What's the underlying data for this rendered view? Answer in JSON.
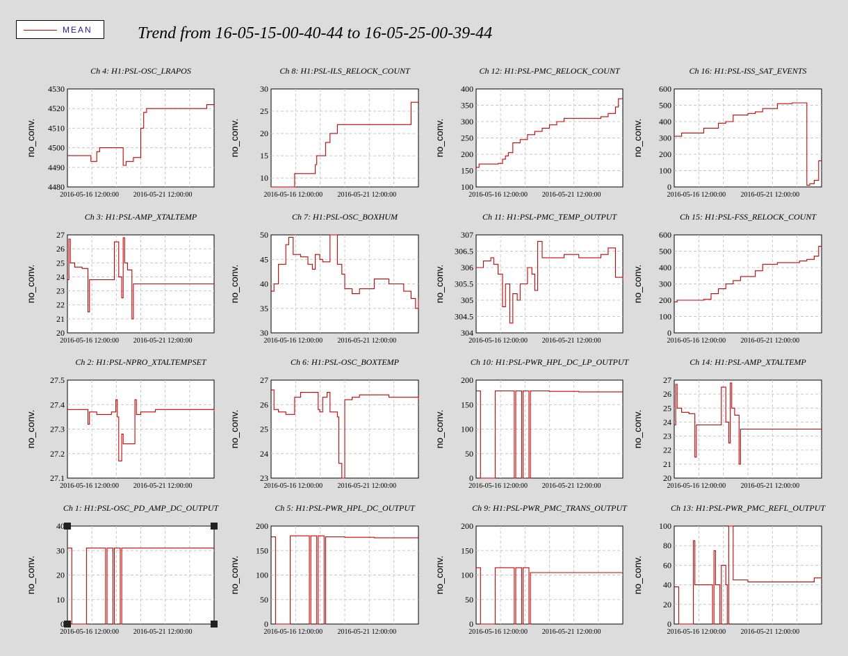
{
  "title": "Trend from 16-05-15-00-40-44 to 16-05-25-00-39-44",
  "legend": {
    "label": "MEAN",
    "color": "#cc0000"
  },
  "chart_data": [
    {
      "type": "line",
      "title": "Ch 4: H1:PSL-OSC_LRAPOS",
      "ylabel": "no_conv.",
      "ylim": [
        4480,
        4530
      ],
      "yticks": [
        "4480",
        "4490",
        "4500",
        "4510",
        "4520",
        "4530"
      ],
      "x": [
        0,
        0.1,
        0.15,
        0.16,
        0.2,
        0.22,
        0.3,
        0.36,
        0.38,
        0.4,
        0.43,
        0.45,
        0.5,
        0.52,
        0.54,
        0.55,
        0.6,
        0.7,
        0.8,
        0.9,
        0.95,
        1
      ],
      "series": [
        {
          "values": [
            4496,
            4496,
            4496,
            4493,
            4498,
            4500,
            4500,
            4500,
            4491,
            4493,
            4493,
            4495,
            4510,
            4518,
            4520,
            4520,
            4520,
            4520,
            4520,
            4520,
            4522,
            4522
          ]
        }
      ]
    },
    {
      "type": "line",
      "title": "Ch 8: H1:PSL-ILS_RELOCK_COUNT",
      "ylabel": "no_conv.",
      "ylim": [
        8,
        30
      ],
      "yticks": [
        "10",
        "15",
        "20",
        "25",
        "30"
      ],
      "x": [
        0,
        0.15,
        0.16,
        0.25,
        0.3,
        0.31,
        0.35,
        0.37,
        0.4,
        0.42,
        0.45,
        0.5,
        0.6,
        0.7,
        0.8,
        0.9,
        0.94,
        0.95,
        1
      ],
      "series": [
        {
          "values": [
            8,
            8,
            11,
            11,
            13,
            15,
            15,
            18,
            20,
            20,
            22,
            22,
            22,
            22,
            22,
            22,
            22,
            27,
            27
          ]
        }
      ]
    },
    {
      "type": "line",
      "title": "Ch 12: H1:PSL-PMC_RELOCK_COUNT",
      "ylabel": "no_conv.",
      "ylim": [
        100,
        400
      ],
      "yticks": [
        "100",
        "150",
        "200",
        "250",
        "300",
        "350",
        "400"
      ],
      "x": [
        0,
        0.02,
        0.1,
        0.15,
        0.18,
        0.2,
        0.22,
        0.25,
        0.3,
        0.35,
        0.4,
        0.45,
        0.5,
        0.55,
        0.6,
        0.7,
        0.8,
        0.85,
        0.9,
        0.95,
        0.97,
        1
      ],
      "series": [
        {
          "values": [
            160,
            170,
            170,
            172,
            185,
            195,
            205,
            235,
            245,
            260,
            270,
            280,
            290,
            300,
            310,
            310,
            310,
            315,
            325,
            345,
            370,
            370
          ]
        }
      ]
    },
    {
      "type": "line",
      "title": "Ch 16: H1:PSL-ISS_SAT_EVENTS",
      "ylabel": "no_conv.",
      "ylim": [
        0,
        600
      ],
      "yticks": [
        "0",
        "100",
        "200",
        "300",
        "400",
        "500",
        "600"
      ],
      "x": [
        0,
        0.05,
        0.1,
        0.15,
        0.2,
        0.3,
        0.35,
        0.4,
        0.5,
        0.55,
        0.6,
        0.7,
        0.8,
        0.85,
        0.89,
        0.9,
        0.92,
        0.95,
        0.98,
        1
      ],
      "series": [
        {
          "values": [
            310,
            330,
            330,
            330,
            360,
            390,
            400,
            440,
            450,
            460,
            480,
            510,
            515,
            515,
            515,
            10,
            20,
            40,
            160,
            160
          ]
        }
      ]
    },
    {
      "type": "line",
      "title": "Ch 3: H1:PSL-AMP_XTALTEMP",
      "ylabel": "no_conv.",
      "ylim": [
        20,
        27
      ],
      "yticks": [
        "20",
        "21",
        "22",
        "23",
        "24",
        "25",
        "26",
        "27"
      ],
      "x": [
        0,
        0.01,
        0.02,
        0.05,
        0.1,
        0.13,
        0.14,
        0.15,
        0.3,
        0.32,
        0.35,
        0.37,
        0.38,
        0.39,
        0.41,
        0.44,
        0.45,
        0.47,
        0.48,
        1
      ],
      "series": [
        {
          "values": [
            23.8,
            26.7,
            25.0,
            24.7,
            24.6,
            24.6,
            21.5,
            23.8,
            23.8,
            26.5,
            24.0,
            22.5,
            26.8,
            25.0,
            24.5,
            21.0,
            23.5,
            23.5,
            23.5,
            23.5
          ]
        }
      ]
    },
    {
      "type": "line",
      "title": "Ch 7: H1:PSL-OSC_BOXHUM",
      "ylabel": "no_conv.",
      "ylim": [
        30,
        50
      ],
      "yticks": [
        "30",
        "35",
        "40",
        "45",
        "50"
      ],
      "x": [
        0,
        0.02,
        0.05,
        0.1,
        0.12,
        0.15,
        0.2,
        0.25,
        0.28,
        0.3,
        0.33,
        0.35,
        0.4,
        0.45,
        0.48,
        0.5,
        0.55,
        0.6,
        0.7,
        0.8,
        0.9,
        0.95,
        0.98,
        1
      ],
      "series": [
        {
          "values": [
            38.5,
            40,
            44,
            48,
            49.5,
            46,
            45.5,
            44,
            43,
            46,
            45,
            44.5,
            50,
            44,
            42,
            39,
            38,
            39,
            41,
            40,
            38.5,
            37,
            35,
            37
          ]
        }
      ]
    },
    {
      "type": "line",
      "title": "Ch 11: H1:PSL-PMC_TEMP_OUTPUT",
      "ylabel": "no_conv.",
      "ylim": [
        304,
        307
      ],
      "yticks": [
        "304",
        "304.5",
        "305",
        "305.5",
        "306",
        "306.5",
        "307"
      ],
      "x": [
        0,
        0.05,
        0.1,
        0.12,
        0.15,
        0.18,
        0.2,
        0.23,
        0.25,
        0.28,
        0.3,
        0.35,
        0.38,
        0.4,
        0.42,
        0.45,
        0.5,
        0.6,
        0.7,
        0.8,
        0.85,
        0.9,
        0.95,
        1
      ],
      "series": [
        {
          "values": [
            306,
            306.2,
            306.3,
            306.1,
            305.8,
            304.8,
            305.5,
            304.3,
            305.2,
            305,
            305.5,
            306,
            305.8,
            305.3,
            306.8,
            306.3,
            306.3,
            306.4,
            306.3,
            306.3,
            306.4,
            306.6,
            305.7,
            305.6
          ]
        }
      ]
    },
    {
      "type": "line",
      "title": "Ch 15: H1:PSL-FSS_RELOCK_COUNT",
      "ylabel": "no_conv.",
      "ylim": [
        0,
        600
      ],
      "yticks": [
        "0",
        "100",
        "200",
        "300",
        "400",
        "500",
        "600"
      ],
      "x": [
        0,
        0.02,
        0.1,
        0.15,
        0.2,
        0.25,
        0.3,
        0.35,
        0.4,
        0.45,
        0.5,
        0.55,
        0.6,
        0.7,
        0.8,
        0.85,
        0.9,
        0.95,
        0.98,
        1
      ],
      "series": [
        {
          "values": [
            190,
            200,
            200,
            200,
            205,
            240,
            270,
            300,
            320,
            345,
            345,
            380,
            420,
            430,
            430,
            440,
            450,
            470,
            530,
            530
          ]
        }
      ]
    },
    {
      "type": "line",
      "title": "Ch 2: H1:PSL-NPRO_XTALTEMPSET",
      "ylabel": "no_conv.",
      "ylim": [
        27.1,
        27.5
      ],
      "yticks": [
        "27.1",
        "27.2",
        "27.3",
        "27.4",
        "27.5"
      ],
      "x": [
        0,
        0.05,
        0.1,
        0.13,
        0.14,
        0.15,
        0.2,
        0.3,
        0.33,
        0.34,
        0.35,
        0.37,
        0.38,
        0.4,
        0.45,
        0.46,
        0.47,
        0.5,
        0.6,
        0.7,
        0.8,
        0.9,
        1
      ],
      "series": [
        {
          "values": [
            27.38,
            27.38,
            27.38,
            27.38,
            27.32,
            27.37,
            27.36,
            27.37,
            27.42,
            27.35,
            27.17,
            27.28,
            27.24,
            27.24,
            27.24,
            27.42,
            27.36,
            27.37,
            27.38,
            27.38,
            27.38,
            27.38,
            27.37
          ]
        }
      ]
    },
    {
      "type": "line",
      "title": "Ch 6: H1:PSL-OSC_BOXTEMP",
      "ylabel": "no_conv.",
      "ylim": [
        23,
        27
      ],
      "yticks": [
        "23",
        "24",
        "25",
        "26",
        "27"
      ],
      "x": [
        0,
        0.02,
        0.05,
        0.1,
        0.15,
        0.16,
        0.2,
        0.25,
        0.3,
        0.32,
        0.33,
        0.35,
        0.38,
        0.4,
        0.45,
        0.46,
        0.48,
        0.5,
        0.55,
        0.6,
        0.7,
        0.8,
        0.9,
        1
      ],
      "series": [
        {
          "values": [
            26.6,
            25.8,
            25.7,
            25.6,
            25.6,
            26.3,
            26.5,
            26.5,
            26.5,
            25.8,
            25.7,
            26.3,
            26.5,
            25.7,
            25.5,
            23.6,
            23.0,
            26.2,
            26.3,
            26.4,
            26.4,
            26.3,
            26.3,
            26.2
          ]
        }
      ]
    },
    {
      "type": "line",
      "title": "Ch 10: H1:PSL-PWR_HPL_DC_LP_OUTPUT",
      "ylabel": "no_conv.",
      "ylim": [
        0,
        200
      ],
      "yticks": [
        "0",
        "50",
        "100",
        "150",
        "200"
      ],
      "x": [
        0,
        0.01,
        0.02,
        0.03,
        0.12,
        0.13,
        0.14,
        0.25,
        0.26,
        0.27,
        0.28,
        0.3,
        0.31,
        0.32,
        0.35,
        0.36,
        0.37,
        0.4,
        0.5,
        0.7,
        0.9,
        1
      ],
      "series": [
        {
          "values": [
            178,
            178,
            178,
            0,
            0,
            178,
            178,
            178,
            0,
            178,
            178,
            178,
            0,
            178,
            178,
            0,
            178,
            178,
            177,
            176,
            176,
            176
          ]
        }
      ]
    },
    {
      "type": "line",
      "title": "Ch 14: H1:PSL-AMP_XTALTEMP",
      "ylabel": "no_conv.",
      "ylim": [
        20,
        27
      ],
      "yticks": [
        "20",
        "21",
        "22",
        "23",
        "24",
        "25",
        "26",
        "27"
      ],
      "x": [
        0,
        0.01,
        0.02,
        0.05,
        0.1,
        0.13,
        0.14,
        0.15,
        0.3,
        0.32,
        0.35,
        0.37,
        0.38,
        0.39,
        0.41,
        0.44,
        0.45,
        0.47,
        0.48,
        1
      ],
      "series": [
        {
          "values": [
            23.8,
            26.7,
            25.0,
            24.7,
            24.6,
            24.6,
            21.5,
            23.8,
            23.8,
            26.5,
            24.0,
            22.5,
            26.8,
            25.0,
            24.5,
            21.0,
            23.5,
            23.5,
            23.5,
            23.5
          ]
        }
      ]
    },
    {
      "type": "line",
      "title": "Ch 1: H1:PSL-OSC_PD_AMP_DC_OUTPUT",
      "ylabel": "no_conv.",
      "ylim": [
        0,
        40
      ],
      "yticks": [
        "0",
        "10",
        "20",
        "30",
        "40"
      ],
      "x": [
        0,
        0.01,
        0.02,
        0.03,
        0.12,
        0.13,
        0.14,
        0.25,
        0.26,
        0.27,
        0.28,
        0.3,
        0.31,
        0.32,
        0.35,
        0.36,
        0.37,
        0.4,
        0.5,
        0.7,
        0.9,
        1
      ],
      "series": [
        {
          "values": [
            31,
            31,
            31,
            0,
            0,
            31,
            31,
            31,
            0,
            31,
            31,
            31,
            0,
            31,
            31,
            0,
            31,
            31,
            31,
            31,
            31,
            31
          ]
        }
      ]
    },
    {
      "type": "line",
      "title": "Ch 5: H1:PSL-PWR_HPL_DC_OUTPUT",
      "ylabel": "no_conv.",
      "ylim": [
        0,
        200
      ],
      "yticks": [
        "0",
        "50",
        "100",
        "150",
        "200"
      ],
      "x": [
        0,
        0.01,
        0.02,
        0.03,
        0.12,
        0.13,
        0.14,
        0.25,
        0.26,
        0.27,
        0.28,
        0.3,
        0.31,
        0.32,
        0.35,
        0.36,
        0.37,
        0.4,
        0.5,
        0.7,
        0.9,
        1
      ],
      "series": [
        {
          "values": [
            178,
            178,
            178,
            0,
            0,
            180,
            180,
            180,
            0,
            180,
            180,
            180,
            0,
            180,
            180,
            0,
            178,
            178,
            177,
            176,
            176,
            176
          ]
        }
      ]
    },
    {
      "type": "line",
      "title": "Ch 9: H1:PSL-PWR_PMC_TRANS_OUTPUT",
      "ylabel": "no_conv.",
      "ylim": [
        0,
        200
      ],
      "yticks": [
        "0",
        "50",
        "100",
        "150",
        "200"
      ],
      "x": [
        0,
        0.01,
        0.02,
        0.03,
        0.12,
        0.13,
        0.14,
        0.25,
        0.26,
        0.27,
        0.28,
        0.3,
        0.31,
        0.32,
        0.35,
        0.36,
        0.37,
        0.4,
        0.5,
        0.7,
        0.9,
        1
      ],
      "series": [
        {
          "values": [
            115,
            115,
            115,
            0,
            0,
            115,
            115,
            115,
            0,
            115,
            115,
            115,
            0,
            115,
            115,
            0,
            105,
            105,
            105,
            105,
            105,
            108
          ]
        }
      ]
    },
    {
      "type": "line",
      "title": "Ch 13: H1:PSL-PWR_PMC_REFL_OUTPUT",
      "ylabel": "no_conv.",
      "ylim": [
        0,
        100
      ],
      "yticks": [
        "0",
        "20",
        "40",
        "60",
        "80",
        "100"
      ],
      "x": [
        0,
        0.01,
        0.02,
        0.03,
        0.12,
        0.13,
        0.14,
        0.25,
        0.26,
        0.27,
        0.28,
        0.3,
        0.31,
        0.32,
        0.35,
        0.36,
        0.37,
        0.4,
        0.5,
        0.7,
        0.9,
        0.95,
        1
      ],
      "series": [
        {
          "values": [
            38,
            38,
            38,
            0,
            0,
            85,
            40,
            40,
            0,
            75,
            40,
            40,
            0,
            60,
            40,
            0,
            100,
            45,
            43,
            43,
            43,
            47,
            46
          ]
        }
      ]
    }
  ],
  "xticks": [
    "2016-05-16 12:00:00",
    "2016-05-21 12:00:00"
  ]
}
